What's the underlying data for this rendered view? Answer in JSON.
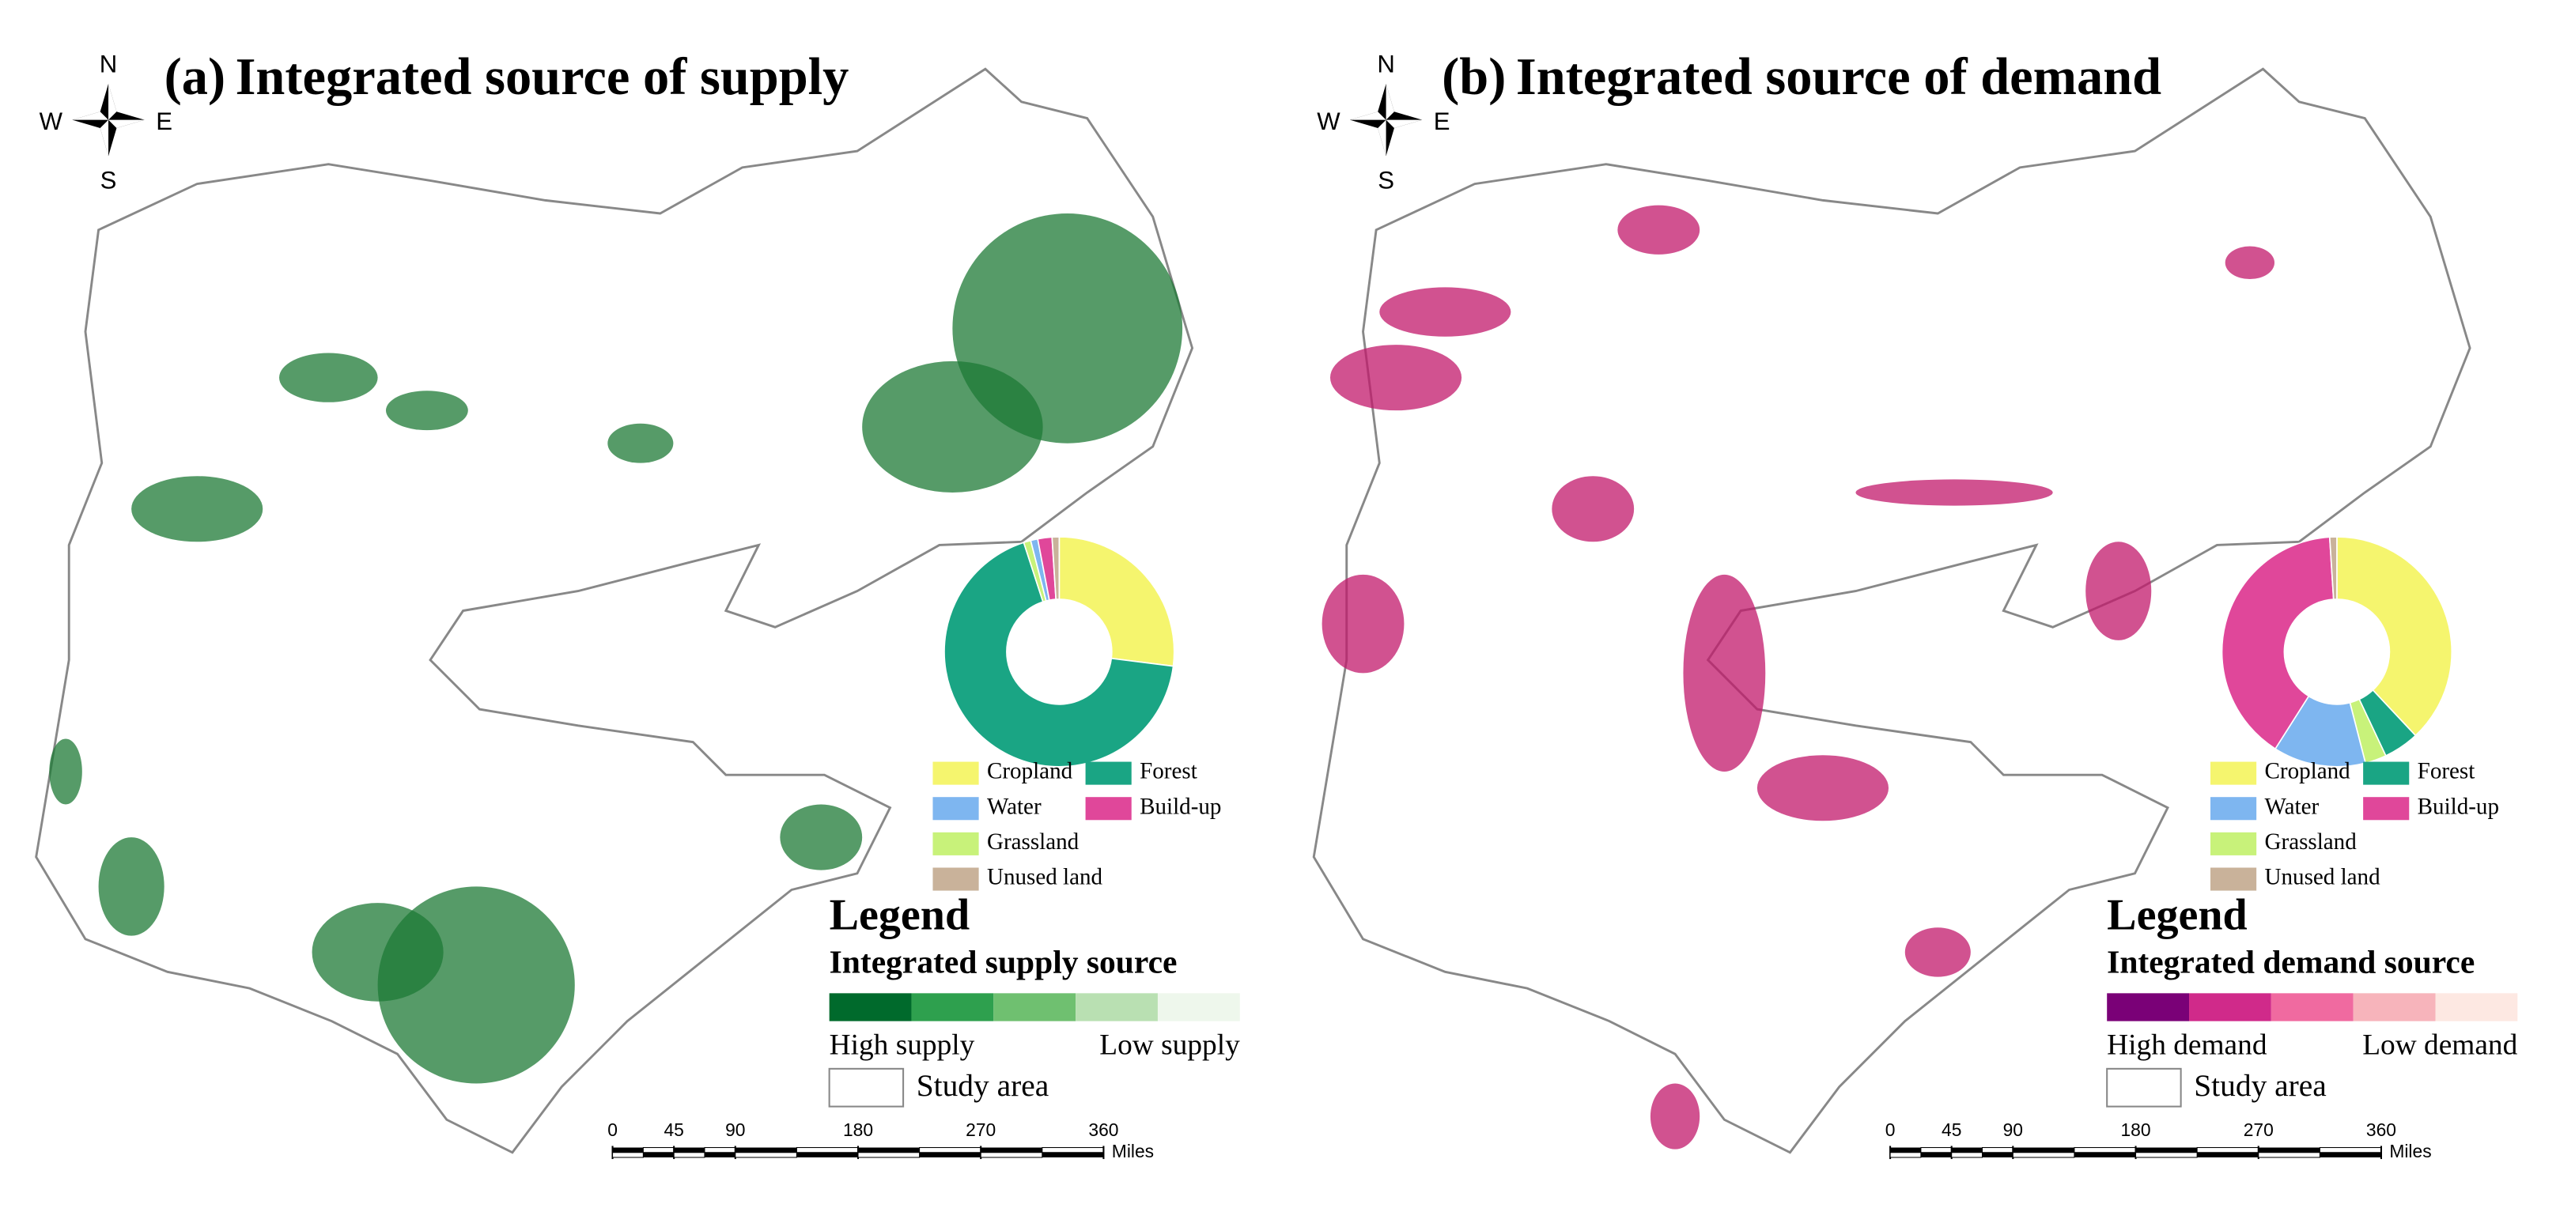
{
  "panels": [
    {
      "label": "(a)",
      "title": "Integrated source of supply",
      "compass": {
        "n": "N",
        "s": "S",
        "w": "W",
        "e": "E"
      },
      "blob_color": "#1e7a36",
      "pie": {
        "type": "pie",
        "categories": [
          "Cropland",
          "Forest",
          "Grassland",
          "Water",
          "Build-up",
          "Unused land"
        ],
        "values": [
          27,
          68,
          1,
          1,
          2,
          1
        ],
        "colors": [
          "#f5f56e",
          "#1aa584",
          "#c8f27a",
          "#7eb6f0",
          "#e0479a",
          "#c9b29a"
        ]
      },
      "legend": {
        "title": "Legend",
        "subtitle": "Integrated supply source",
        "ramp": [
          "#006a2c",
          "#2ea04e",
          "#6fc070",
          "#b9e0b2",
          "#eef7ec"
        ],
        "high": "High supply",
        "low": "Low supply",
        "study_area": "Study area"
      },
      "scalebar": {
        "ticks": [
          0,
          45,
          90,
          180,
          270,
          360
        ],
        "unit": "Miles"
      }
    },
    {
      "label": "(b)",
      "title": "Integrated source of demand",
      "compass": {
        "n": "N",
        "s": "S",
        "w": "W",
        "e": "E"
      },
      "blob_color": "#c2186b",
      "pie": {
        "type": "pie",
        "categories": [
          "Cropland",
          "Forest",
          "Grassland",
          "Water",
          "Build-up",
          "Unused land"
        ],
        "values": [
          38,
          5,
          3,
          13,
          40,
          1
        ],
        "colors": [
          "#f5f56e",
          "#1aa584",
          "#c8f27a",
          "#7eb6f0",
          "#e0479a",
          "#c9b29a"
        ]
      },
      "legend": {
        "title": "Legend",
        "subtitle": "Integrated demand source",
        "ramp": [
          "#7a0177",
          "#d02a8a",
          "#f06aa0",
          "#f7b4bb",
          "#fde8e2"
        ],
        "high": "High demand",
        "low": "Low demand",
        "study_area": "Study area"
      },
      "scalebar": {
        "ticks": [
          0,
          45,
          90,
          180,
          270,
          360
        ],
        "unit": "Miles"
      }
    }
  ]
}
